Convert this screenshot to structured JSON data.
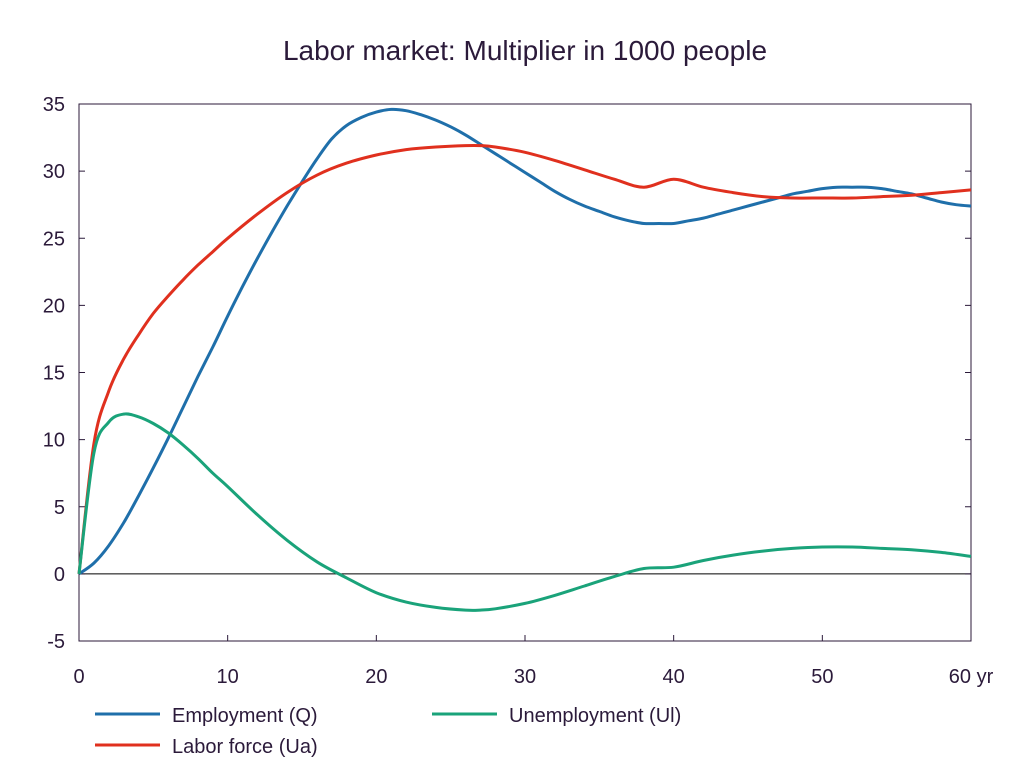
{
  "chart_data": {
    "type": "line",
    "title": "Labor market: Multiplier in 1000 people",
    "xlabel": "",
    "ylabel": "",
    "xlim": [
      0,
      60
    ],
    "ylim": [
      -5,
      35
    ],
    "x_ticks": [
      "0",
      "10",
      "20",
      "30",
      "40",
      "50",
      "60 yr"
    ],
    "x_tick_values": [
      0,
      10,
      20,
      30,
      40,
      50,
      60
    ],
    "y_ticks": [
      "-5",
      "0",
      "5",
      "10",
      "15",
      "20",
      "25",
      "30",
      "35"
    ],
    "y_tick_values": [
      -5,
      0,
      5,
      10,
      15,
      20,
      25,
      30,
      35
    ],
    "grid": false,
    "zero_line": true,
    "legend_position": "bottom",
    "series": [
      {
        "name": "Employment (Q)",
        "color": "#1f6faa",
        "x": [
          0,
          1,
          2,
          3,
          4,
          5,
          6,
          7,
          8,
          9,
          10,
          11,
          12,
          13,
          14,
          15,
          16,
          17,
          18,
          19,
          20,
          21,
          22,
          23,
          24,
          25,
          26,
          27,
          28,
          29,
          30,
          31,
          32,
          33,
          34,
          35,
          36,
          37,
          38,
          39,
          40,
          41,
          42,
          43,
          44,
          45,
          46,
          47,
          48,
          49,
          50,
          51,
          52,
          53,
          54,
          55,
          56,
          57,
          58,
          59,
          60
        ],
        "values": [
          0,
          0.8,
          2.1,
          3.8,
          5.8,
          7.9,
          10.1,
          12.4,
          14.7,
          16.9,
          19.2,
          21.4,
          23.5,
          25.5,
          27.4,
          29.2,
          30.9,
          32.4,
          33.4,
          34.0,
          34.4,
          34.6,
          34.5,
          34.2,
          33.8,
          33.3,
          32.7,
          32.0,
          31.3,
          30.6,
          29.9,
          29.2,
          28.5,
          27.9,
          27.4,
          27.0,
          26.6,
          26.3,
          26.1,
          26.1,
          26.1,
          26.3,
          26.5,
          26.8,
          27.1,
          27.4,
          27.7,
          28.0,
          28.3,
          28.5,
          28.7,
          28.8,
          28.8,
          28.8,
          28.7,
          28.5,
          28.3,
          28.0,
          27.7,
          27.5,
          27.4
        ],
        "note_ignore": ""
      },
      {
        "name": "Labor force (Ua)",
        "color": "#e0301e",
        "x": [
          0,
          1,
          2,
          3,
          4,
          5,
          6,
          7,
          8,
          9,
          10,
          12,
          14,
          16,
          18,
          20,
          22,
          24,
          26,
          27,
          28,
          30,
          32,
          34,
          36,
          38,
          40,
          42,
          44,
          46,
          48,
          50,
          52,
          54,
          56,
          58,
          60
        ],
        "values": [
          0,
          9.7,
          13.6,
          16.0,
          17.8,
          19.4,
          20.7,
          21.9,
          23.0,
          24.0,
          25.0,
          26.8,
          28.4,
          29.7,
          30.6,
          31.2,
          31.6,
          31.8,
          31.9,
          31.9,
          31.8,
          31.4,
          30.8,
          30.1,
          29.4,
          28.8,
          29.4,
          28.8,
          28.4,
          28.1,
          28.0,
          28.0,
          28.0,
          28.1,
          28.2,
          28.4,
          28.6
        ]
      },
      {
        "name": "Unemployment (Ul)",
        "color": "#1aa37a",
        "x": [
          0,
          1,
          2,
          3,
          4,
          5,
          6,
          7,
          8,
          9,
          10,
          12,
          14,
          16,
          18,
          20,
          22,
          24,
          26,
          27,
          28,
          30,
          32,
          34,
          36,
          38,
          40,
          42,
          44,
          46,
          48,
          50,
          52,
          54,
          56,
          58,
          60
        ],
        "values": [
          0,
          9.0,
          11.3,
          11.9,
          11.7,
          11.2,
          10.5,
          9.6,
          8.6,
          7.5,
          6.5,
          4.4,
          2.5,
          0.9,
          -0.3,
          -1.4,
          -2.1,
          -2.5,
          -2.7,
          -2.7,
          -2.6,
          -2.2,
          -1.6,
          -0.9,
          -0.2,
          0.4,
          0.5,
          1.0,
          1.4,
          1.7,
          1.9,
          2.0,
          2.0,
          1.9,
          1.8,
          1.6,
          1.3
        ]
      }
    ]
  },
  "legend": {
    "employment": "Employment (Q)",
    "unemployment": "Unemployment (Ul)",
    "labor_force": "Labor force (Ua)"
  }
}
